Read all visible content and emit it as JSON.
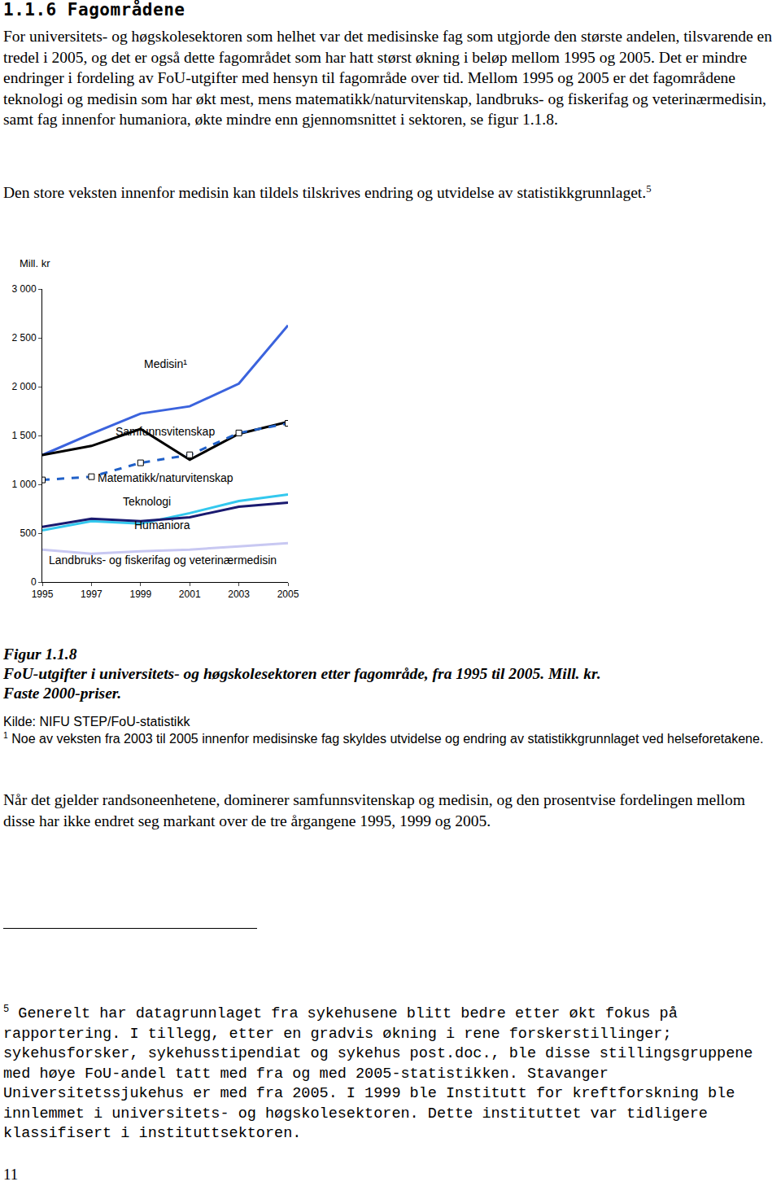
{
  "heading": "1.1.6 Fagområdene",
  "paragraphs": [
    {
      "text": "For universitets- og høgskolesektoren som helhet var det medisinske fag som utgjorde den største andelen, tilsvarende en tredel i 2005, og det er også dette fagområdet som har hatt størst økning i beløp mellom 1995 og 2005. Det er mindre endringer i fordeling av FoU-utgifter med hensyn til fagområde over tid. Mellom 1995 og 2005 er det fagområdene teknologi og medisin som har økt mest, mens matematikk/naturvitenskap, landbruks- og fiskerifag og veterinærmedisin, samt fag innenfor humaniora, økte mindre enn gjennomsnittet i sektoren, se figur 1.1.8."
    },
    {
      "text": "Den store veksten innenfor medisin kan tildels tilskrives endring og utvidelse av statistikkgrunnlaget.",
      "note": "5"
    }
  ],
  "chart_data": {
    "type": "line",
    "y_title": "Mill. kr",
    "x": [
      1995,
      1997,
      1999,
      2001,
      2003,
      2005
    ],
    "xlim": [
      1995,
      2005
    ],
    "xticks": [
      1995,
      1997,
      1999,
      2001,
      2003,
      2005
    ],
    "ylim": [
      0,
      3000
    ],
    "yticks": [
      0,
      500,
      {
        "value": 1000,
        "label": "1 000"
      },
      {
        "value": 1500,
        "label": "1 500"
      },
      {
        "value": 2000,
        "label": "2 000"
      },
      {
        "value": 2500,
        "label": "2 500"
      },
      {
        "value": 3000,
        "label": "3 000"
      }
    ],
    "grid": false,
    "series": [
      {
        "name": "Medisin¹",
        "color": "#3b63dd",
        "line_style": "solid",
        "marker": "none",
        "values": [
          1300,
          1517,
          1724,
          1799,
          2031,
          2628
        ]
      },
      {
        "name": "Samfunnsvitenskap",
        "color": "#000000",
        "line_style": "solid",
        "marker": "none",
        "values": [
          1300,
          1393,
          1567,
          1252,
          1517,
          1640
        ]
      },
      {
        "name": "Matematikk/naturvitenskap",
        "color": "#2060c8",
        "line_style": "dash",
        "marker": "square",
        "values": [
          1045,
          1078,
          1220,
          1302,
          1526,
          1625
        ]
      },
      {
        "name": "Teknologi",
        "color": "#33c8ee",
        "line_style": "solid",
        "marker": "none",
        "values": [
          530,
          622,
          597,
          705,
          829,
          895
        ]
      },
      {
        "name": "Humaniora",
        "color": "#1a1a70",
        "line_style": "solid",
        "marker": "none",
        "values": [
          564,
          647,
          622,
          663,
          771,
          812
        ]
      },
      {
        "name": "Landbruks- og fiskerifag og veterinærmedisin",
        "color": "#c8c8f2",
        "line_style": "solid",
        "marker": "none",
        "values": [
          332,
          290,
          315,
          332,
          365,
          398
        ]
      }
    ]
  },
  "caption": {
    "number": "Figur 1.1.8",
    "title": "FoU-utgifter i universitets- og høgskolesektoren etter fagområde, fra 1995 til 2005. Mill. kr. Faste 2000-priser.",
    "source": "Kilde: NIFU STEP/FoU-statistikk",
    "note": {
      "mark": "1",
      "text": "Noe av veksten fra 2003 til 2005 innenfor medisinske fag skyldes utvidelse og endring av statistikkgrunnlaget ved helseforetakene."
    }
  },
  "after_text": "Når det gjelder randsoneenhetene, dominerer samfunnsvitenskap og medisin, og den prosentvise fordelingen mellom disse har ikke endret seg markant over de tre årgangene 1995, 1999 og 2005.",
  "footnote": {
    "mark": "5",
    "text": "Generelt har datagrunnlaget fra sykehusene blitt bedre etter økt fokus på rapportering. I tillegg, etter en gradvis økning i rene forskerstillinger; sykehusforsker, sykehusstipendiat og sykehus post.doc., ble disse stillingsgruppene med høye FoU-andel tatt med fra og med 2005-statistikken. Stavanger Universitetssjukehus er med fra 2005. I 1999 ble Institutt for kreftforskning ble innlemmet i universitets- og høgskolesektoren. Dette instituttet var tidligere klassifisert i instituttsektoren."
  },
  "page_number": "11"
}
